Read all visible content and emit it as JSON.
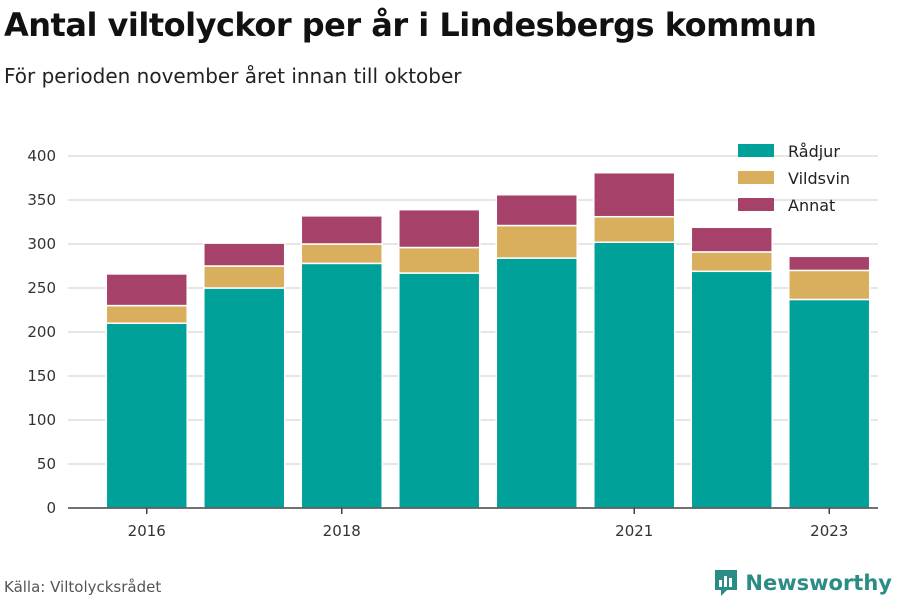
{
  "header": {
    "title": "Antal viltolyckor per år i Lindesbergs kommun",
    "subtitle": "För perioden november året innan till oktober"
  },
  "footer": {
    "source": "Källa: Viltolycksrådet",
    "brand": "Newsworthy"
  },
  "chart_data": {
    "type": "bar",
    "stacked": true,
    "categories": [
      "2016",
      "2017",
      "2018",
      "2019",
      "2020",
      "2021",
      "2022",
      "2023"
    ],
    "x_tick_labels": [
      "2016",
      "",
      "2018",
      "",
      "",
      "2021",
      "",
      "2023"
    ],
    "series": [
      {
        "name": "Rådjur",
        "color": "#00a199",
        "values": [
          210,
          250,
          278,
          267,
          284,
          302,
          269,
          237
        ]
      },
      {
        "name": "Vildsvin",
        "color": "#d9ae5c",
        "values": [
          20,
          25,
          22,
          29,
          37,
          29,
          22,
          33
        ]
      },
      {
        "name": "Annat",
        "color": "#a6416a",
        "values": [
          36,
          26,
          32,
          43,
          35,
          50,
          28,
          16
        ]
      }
    ],
    "ylim": [
      0,
      400
    ],
    "yticks": [
      0,
      50,
      100,
      150,
      200,
      250,
      300,
      350,
      400
    ],
    "grid": true,
    "legend": "top-right"
  }
}
